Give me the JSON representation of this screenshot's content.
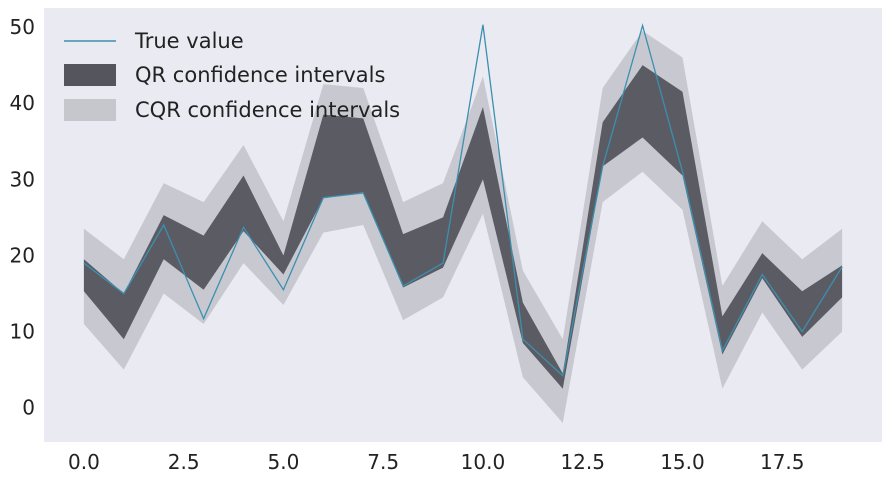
{
  "chart_data": {
    "type": "area",
    "title": "",
    "xlabel": "",
    "ylabel": "",
    "xlim": [
      -1.0,
      20.0
    ],
    "ylim": [
      -4.5,
      52.5
    ],
    "x_ticks": [
      0.0,
      2.5,
      5.0,
      7.5,
      10.0,
      12.5,
      15.0,
      17.5
    ],
    "x_tick_labels": [
      "0.0",
      "2.5",
      "5.0",
      "7.5",
      "10.0",
      "12.5",
      "15.0",
      "17.5"
    ],
    "y_ticks": [
      0,
      10,
      20,
      30,
      40,
      50
    ],
    "y_tick_labels": [
      "0",
      "10",
      "20",
      "30",
      "40",
      "50"
    ],
    "grid": false,
    "legend_position": "top-left",
    "x": [
      0,
      1,
      2,
      3,
      4,
      5,
      6,
      7,
      8,
      9,
      10,
      11,
      12,
      13,
      14,
      15,
      16,
      17,
      18,
      19
    ],
    "series": [
      {
        "name": "True value",
        "kind": "line",
        "color": "#3b8fb0",
        "values": [
          19.0,
          15.0,
          24.0,
          11.7,
          23.7,
          15.5,
          27.6,
          28.2,
          16.0,
          19.0,
          50.3,
          9.0,
          4.2,
          31.7,
          50.2,
          31.0,
          7.5,
          17.5,
          10.0,
          18.5
        ]
      },
      {
        "name": "QR confidence intervals",
        "kind": "band",
        "color": "#55565d",
        "lower": [
          15.3,
          9.0,
          19.5,
          15.5,
          23.2,
          17.5,
          27.5,
          28.3,
          15.8,
          18.4,
          30.0,
          8.5,
          2.5,
          31.7,
          35.5,
          30.5,
          7.0,
          17.0,
          9.3,
          14.5
        ],
        "upper": [
          19.5,
          15.0,
          25.3,
          22.6,
          30.5,
          20.0,
          38.5,
          38.0,
          22.8,
          25.0,
          39.5,
          13.8,
          4.5,
          37.5,
          45.0,
          41.5,
          12.0,
          20.3,
          15.3,
          18.7
        ]
      },
      {
        "name": "CQR confidence intervals",
        "kind": "band",
        "color": "#c6c7cd",
        "lower": [
          11.0,
          5.0,
          15.0,
          11.0,
          19.0,
          13.5,
          23.0,
          24.0,
          11.5,
          14.5,
          25.5,
          4.0,
          -2.0,
          27.0,
          31.0,
          26.0,
          2.5,
          12.5,
          5.0,
          10.0
        ],
        "upper": [
          23.5,
          19.5,
          29.5,
          27.0,
          34.5,
          24.5,
          42.5,
          42.0,
          27.0,
          29.5,
          43.5,
          18.0,
          9.0,
          42.0,
          49.5,
          46.0,
          16.0,
          24.5,
          19.5,
          23.5
        ]
      }
    ],
    "colors": {
      "plot_background": "#eaeaf2",
      "figure_background": "#ffffff"
    }
  }
}
